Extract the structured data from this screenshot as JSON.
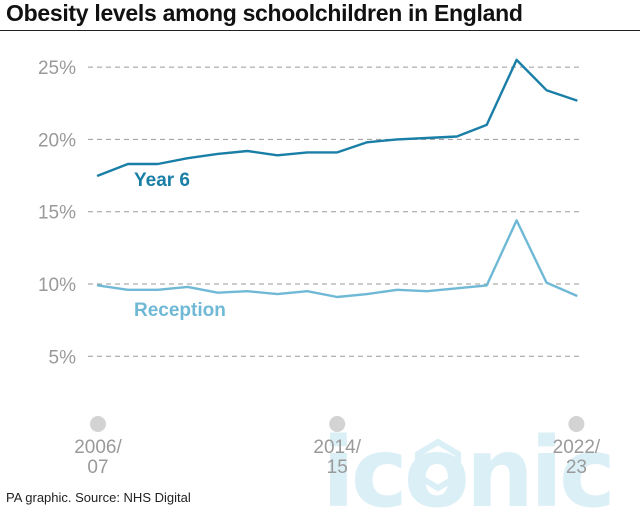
{
  "title": "Obesity levels among schoolchildren in England",
  "source": "PA graphic. Source: NHS Digital",
  "watermark": "iconic",
  "colors": {
    "year6": "#1a7fa6",
    "reception": "#6fb9d6",
    "grid": "#9a9a9a",
    "tick": "#9a9a9a"
  },
  "chart_data": {
    "type": "line",
    "title": "Obesity levels among schoolchildren in England",
    "xlabel": "",
    "ylabel": "",
    "ylim": [
      0,
      26
    ],
    "yticks": [
      {
        "value": 5,
        "label": "5%"
      },
      {
        "value": 10,
        "label": "10%"
      },
      {
        "value": 15,
        "label": "15%"
      },
      {
        "value": 20,
        "label": "20%"
      },
      {
        "value": 25,
        "label": "25%"
      }
    ],
    "x": [
      "2006/07",
      "2007/08",
      "2008/09",
      "2009/10",
      "2010/11",
      "2011/12",
      "2012/13",
      "2013/14",
      "2014/15",
      "2015/16",
      "2016/17",
      "2017/18",
      "2018/19",
      "2019/20",
      "2020/21",
      "2021/22",
      "2022/23"
    ],
    "xtick_labels": [
      {
        "index": 0,
        "line1": "2006/",
        "line2": "07"
      },
      {
        "index": 8,
        "line1": "2014/",
        "line2": "15"
      },
      {
        "index": 16,
        "line1": "2022/",
        "line2": "23"
      }
    ],
    "series": [
      {
        "name": "Year 6",
        "values": [
          17.5,
          18.3,
          18.3,
          18.7,
          19.0,
          19.2,
          18.9,
          19.1,
          19.1,
          19.8,
          20.0,
          20.1,
          20.2,
          21.0,
          25.5,
          23.4,
          22.7
        ]
      },
      {
        "name": "Reception",
        "values": [
          9.9,
          9.6,
          9.6,
          9.8,
          9.4,
          9.5,
          9.3,
          9.5,
          9.1,
          9.3,
          9.6,
          9.5,
          9.7,
          9.9,
          14.4,
          10.1,
          9.2
        ]
      }
    ],
    "grid": true,
    "legend": "inline labels"
  }
}
